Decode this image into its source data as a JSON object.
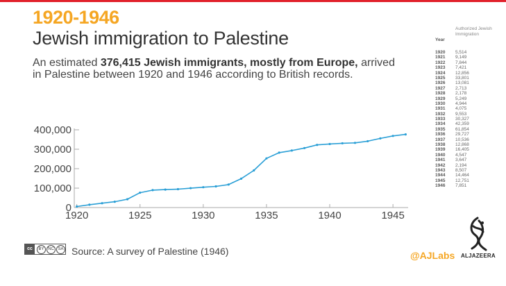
{
  "header": {
    "title_line1": "1920-1946",
    "title_line2": "Jewish immigration to Palestine",
    "desc_pre": "An estimated ",
    "desc_bold": "376,415 Jewish immigrants, mostly from Europe,",
    "desc_post": " arrived in Palestine between 1920 and 1946 according to British records."
  },
  "table": {
    "year_header": "Year",
    "value_header": "Authorized Jewish Immigration",
    "rows": [
      {
        "year": "1920",
        "value": "5,514"
      },
      {
        "year": "1921",
        "value": "9,149"
      },
      {
        "year": "1922",
        "value": "7,844"
      },
      {
        "year": "1923",
        "value": "7,421"
      },
      {
        "year": "1924",
        "value": "12,856"
      },
      {
        "year": "1925",
        "value": "33,801"
      },
      {
        "year": "1926",
        "value": "13,081"
      },
      {
        "year": "1927",
        "value": "2,713"
      },
      {
        "year": "1928",
        "value": "2,178"
      },
      {
        "year": "1929",
        "value": "5,249"
      },
      {
        "year": "1930",
        "value": "4,944"
      },
      {
        "year": "1931",
        "value": "4,075"
      },
      {
        "year": "1932",
        "value": "9,553"
      },
      {
        "year": "1933",
        "value": "30,327"
      },
      {
        "year": "1934",
        "value": "42,359"
      },
      {
        "year": "1935",
        "value": "61,854"
      },
      {
        "year": "1936",
        "value": "29,727"
      },
      {
        "year": "1937",
        "value": "10,536"
      },
      {
        "year": "1938",
        "value": "12,868"
      },
      {
        "year": "1939",
        "value": "16,405"
      },
      {
        "year": "1940",
        "value": "4,547"
      },
      {
        "year": "1941",
        "value": "3,647"
      },
      {
        "year": "1942",
        "value": "2,194"
      },
      {
        "year": "1943",
        "value": "8,507"
      },
      {
        "year": "1944",
        "value": "14,464"
      },
      {
        "year": "1945",
        "value": "12,751"
      },
      {
        "year": "1946",
        "value": "7,851"
      }
    ]
  },
  "chart_data": {
    "type": "line",
    "title": "",
    "xlabel": "",
    "ylabel": "",
    "x": [
      1920,
      1921,
      1922,
      1923,
      1924,
      1925,
      1926,
      1927,
      1928,
      1929,
      1930,
      1931,
      1932,
      1933,
      1934,
      1935,
      1936,
      1937,
      1938,
      1939,
      1940,
      1941,
      1942,
      1943,
      1944,
      1945,
      1946
    ],
    "series": [
      {
        "values": [
          5514,
          14663,
          22507,
          29928,
          42784,
          76585,
          89666,
          92379,
          94557,
          99806,
          104750,
          108825,
          118378,
          148705,
          191064,
          252918,
          282645,
          293181,
          306049,
          322454,
          327001,
          330648,
          332842,
          341349,
          355813,
          368564,
          376415
        ],
        "color": "#2a9fd6"
      }
    ],
    "xlim": [
      1919.8,
      1946.2
    ],
    "ylim": [
      0,
      400000
    ],
    "yticks": [
      0,
      100000,
      200000,
      300000,
      400000
    ],
    "ytick_labels": [
      "0",
      "100,000",
      "200,000",
      "300,000",
      "400,000"
    ],
    "xticks": [
      1920,
      1925,
      1930,
      1935,
      1940,
      1945
    ],
    "xtick_labels": [
      "1920",
      "1925",
      "1930",
      "1935",
      "1940",
      "1945"
    ],
    "grid": false
  },
  "footer": {
    "cc_label": "cc",
    "cc_parts": [
      "BY",
      "NC",
      "SA"
    ],
    "source": "Source: A survey of Palestine (1946)",
    "ajlabs": "@AJLabs",
    "aljazeera": "ALJAZEERA"
  },
  "colors": {
    "accent": "#f5a623",
    "line": "#2a9fd6",
    "topbar": "#e1212b"
  }
}
